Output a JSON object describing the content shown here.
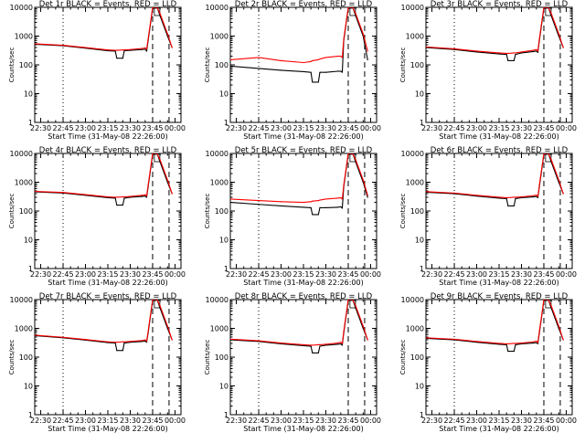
{
  "figure": {
    "background": "#ffffff",
    "series_colors": {
      "events": "#000000",
      "lld": "#ff0000"
    }
  },
  "chart_data": [
    {
      "type": "line",
      "title": "Det 1r BLACK = Events, RED = LLD",
      "xlabel": "Start Time (31-May-08 22:26:00)",
      "ylabel": "Counts/sec",
      "ylim": [
        1,
        10000
      ],
      "log_y": true,
      "x_tick_labels": [
        "22:30",
        "22:45",
        "23:00",
        "23:15",
        "23:30",
        "23:45",
        "00:00"
      ],
      "y_tick_labels": [
        "1",
        "10",
        "100",
        "1000",
        "10000"
      ],
      "x": [
        "22:26",
        "22:45",
        "23:00",
        "23:15",
        "23:20",
        "23:21",
        "23:25",
        "23:26",
        "23:30",
        "23:38",
        "23:40",
        "23:41",
        "23:42",
        "23:45",
        "23:48",
        "23:50",
        "23:55",
        "23:58"
      ],
      "series": [
        {
          "name": "Events",
          "values": [
            520,
            460,
            380,
            310,
            300,
            170,
            170,
            310,
            320,
            340,
            350,
            300,
            700,
            9000,
            10000,
            5000,
            1000,
            400
          ]
        },
        {
          "name": "LLD",
          "values": [
            540,
            480,
            400,
            330,
            320,
            320,
            330,
            330,
            340,
            370,
            390,
            350,
            800,
            10000,
            10000,
            6000,
            1200,
            400
          ]
        }
      ]
    },
    {
      "type": "line",
      "title": "Det 2r BLACK = Events, RED = LLD",
      "xlabel": "Start Time (31-May-08 22:26:00)",
      "ylabel": "Counts/sec",
      "ylim": [
        1,
        10000
      ],
      "log_y": true,
      "x_tick_labels": [
        "22:30",
        "22:45",
        "23:00",
        "23:15",
        "23:30",
        "23:45",
        "00:00"
      ],
      "y_tick_labels": [
        "1",
        "10",
        "100",
        "1000",
        "10000"
      ],
      "x": [
        "22:26",
        "22:45",
        "23:00",
        "23:15",
        "23:20",
        "23:21",
        "23:25",
        "23:26",
        "23:30",
        "23:38",
        "23:40",
        "23:41",
        "23:42",
        "23:45",
        "23:48",
        "23:50",
        "23:55",
        "23:58"
      ],
      "series": [
        {
          "name": "Events",
          "values": [
            90,
            75,
            65,
            58,
            55,
            25,
            25,
            55,
            55,
            60,
            60,
            55,
            700,
            9000,
            10000,
            5000,
            1000,
            150
          ]
        },
        {
          "name": "LLD",
          "values": [
            150,
            180,
            140,
            120,
            130,
            140,
            150,
            160,
            180,
            200,
            200,
            180,
            800,
            10000,
            10000,
            6000,
            1200,
            300
          ]
        }
      ]
    },
    {
      "type": "line",
      "title": "Det 3r BLACK = Events, RED = LLD",
      "xlabel": "Start Time (31-May-08 22:26:00)",
      "ylabel": "Counts/sec",
      "ylim": [
        1,
        10000
      ],
      "log_y": true,
      "x_tick_labels": [
        "22:30",
        "22:45",
        "23:00",
        "23:15",
        "23:30",
        "23:45",
        "00:00"
      ],
      "y_tick_labels": [
        "1",
        "10",
        "100",
        "1000",
        "10000"
      ],
      "x": [
        "22:26",
        "22:45",
        "23:00",
        "23:15",
        "23:20",
        "23:21",
        "23:25",
        "23:26",
        "23:30",
        "23:38",
        "23:40",
        "23:41",
        "23:42",
        "23:45",
        "23:48",
        "23:50",
        "23:55",
        "23:58"
      ],
      "series": [
        {
          "name": "Events",
          "values": [
            400,
            340,
            280,
            240,
            230,
            140,
            140,
            230,
            260,
            290,
            300,
            270,
            700,
            9000,
            10000,
            5000,
            1000,
            400
          ]
        },
        {
          "name": "LLD",
          "values": [
            420,
            360,
            300,
            260,
            250,
            250,
            260,
            260,
            280,
            320,
            340,
            300,
            800,
            10000,
            10000,
            6000,
            1200,
            400
          ]
        }
      ]
    },
    {
      "type": "line",
      "title": "Det 4r BLACK = Events, RED = LLD",
      "xlabel": "Start Time (31-May-08 22:26:00)",
      "ylabel": "Counts/sec",
      "ylim": [
        1,
        10000
      ],
      "log_y": true,
      "x_tick_labels": [
        "22:30",
        "22:45",
        "23:00",
        "23:15",
        "23:30",
        "23:45",
        "00:00"
      ],
      "y_tick_labels": [
        "1",
        "10",
        "100",
        "1000",
        "10000"
      ],
      "x": [
        "22:26",
        "22:45",
        "23:00",
        "23:15",
        "23:20",
        "23:21",
        "23:25",
        "23:26",
        "23:30",
        "23:38",
        "23:40",
        "23:41",
        "23:42",
        "23:45",
        "23:48",
        "23:50",
        "23:55",
        "23:58"
      ],
      "series": [
        {
          "name": "Events",
          "values": [
            460,
            420,
            350,
            290,
            280,
            160,
            160,
            280,
            300,
            320,
            330,
            300,
            700,
            9000,
            10000,
            5000,
            1000,
            400
          ]
        },
        {
          "name": "LLD",
          "values": [
            480,
            440,
            370,
            310,
            300,
            300,
            310,
            310,
            320,
            350,
            370,
            330,
            800,
            10000,
            10000,
            6000,
            1200,
            400
          ]
        }
      ]
    },
    {
      "type": "line",
      "title": "Det 5r BLACK = Events, RED = LLD",
      "xlabel": "Start Time (31-May-08 22:26:00)",
      "ylabel": "Counts/sec",
      "ylim": [
        1,
        10000
      ],
      "log_y": true,
      "x_tick_labels": [
        "22:30",
        "22:45",
        "23:00",
        "23:15",
        "23:30",
        "23:45",
        "00:00"
      ],
      "y_tick_labels": [
        "1",
        "10",
        "100",
        "1000",
        "10000"
      ],
      "x": [
        "22:26",
        "22:45",
        "23:00",
        "23:15",
        "23:20",
        "23:21",
        "23:25",
        "23:26",
        "23:30",
        "23:38",
        "23:40",
        "23:41",
        "23:42",
        "23:45",
        "23:48",
        "23:50",
        "23:55",
        "23:58"
      ],
      "series": [
        {
          "name": "Events",
          "values": [
            200,
            170,
            150,
            135,
            130,
            75,
            75,
            130,
            130,
            135,
            140,
            125,
            700,
            9000,
            10000,
            5000,
            1000,
            300
          ]
        },
        {
          "name": "LLD",
          "values": [
            260,
            230,
            210,
            200,
            210,
            220,
            230,
            240,
            260,
            280,
            290,
            260,
            800,
            10000,
            10000,
            6000,
            1200,
            350
          ]
        }
      ]
    },
    {
      "type": "line",
      "title": "Det 6r BLACK = Events, RED = LLD",
      "xlabel": "Start Time (31-May-08 22:26:00)",
      "ylabel": "Counts/sec",
      "ylim": [
        1,
        10000
      ],
      "log_y": true,
      "x_tick_labels": [
        "22:30",
        "22:45",
        "23:00",
        "23:15",
        "23:30",
        "23:45",
        "00:00"
      ],
      "y_tick_labels": [
        "1",
        "10",
        "100",
        "1000",
        "10000"
      ],
      "x": [
        "22:26",
        "22:45",
        "23:00",
        "23:15",
        "23:20",
        "23:21",
        "23:25",
        "23:26",
        "23:30",
        "23:38",
        "23:40",
        "23:41",
        "23:42",
        "23:45",
        "23:48",
        "23:50",
        "23:55",
        "23:58"
      ],
      "series": [
        {
          "name": "Events",
          "values": [
            450,
            400,
            330,
            280,
            270,
            150,
            150,
            270,
            290,
            310,
            320,
            290,
            700,
            9000,
            10000,
            5000,
            1000,
            400
          ]
        },
        {
          "name": "LLD",
          "values": [
            470,
            420,
            350,
            300,
            290,
            290,
            300,
            300,
            310,
            340,
            360,
            320,
            800,
            10000,
            10000,
            6000,
            1200,
            400
          ]
        }
      ]
    },
    {
      "type": "line",
      "title": "Det 7r BLACK = Events, RED = LLD",
      "xlabel": "Start Time (31-May-08 22:26:00)",
      "ylabel": "Counts/sec",
      "ylim": [
        1,
        10000
      ],
      "log_y": true,
      "x_tick_labels": [
        "22:30",
        "22:45",
        "23:00",
        "23:15",
        "23:30",
        "23:45",
        "00:00"
      ],
      "y_tick_labels": [
        "1",
        "10",
        "100",
        "1000",
        "10000"
      ],
      "x": [
        "22:26",
        "22:45",
        "23:00",
        "23:15",
        "23:20",
        "23:21",
        "23:25",
        "23:26",
        "23:30",
        "23:38",
        "23:40",
        "23:41",
        "23:42",
        "23:45",
        "23:48",
        "23:50",
        "23:55",
        "23:58"
      ],
      "series": [
        {
          "name": "Events",
          "values": [
            560,
            470,
            390,
            320,
            310,
            170,
            170,
            310,
            330,
            350,
            360,
            330,
            700,
            9000,
            10000,
            5000,
            1000,
            400
          ]
        },
        {
          "name": "LLD",
          "values": [
            580,
            490,
            410,
            340,
            330,
            330,
            340,
            340,
            350,
            380,
            400,
            360,
            800,
            10000,
            10000,
            6000,
            1200,
            400
          ]
        }
      ]
    },
    {
      "type": "line",
      "title": "Det 8r BLACK = Events, RED = LLD",
      "xlabel": "Start Time (31-May-08 22:26:00)",
      "ylabel": "Counts/sec",
      "ylim": [
        1,
        10000
      ],
      "log_y": true,
      "x_tick_labels": [
        "22:30",
        "22:45",
        "23:00",
        "23:15",
        "23:30",
        "23:45",
        "00:00"
      ],
      "y_tick_labels": [
        "1",
        "10",
        "100",
        "1000",
        "10000"
      ],
      "x": [
        "22:26",
        "22:45",
        "23:00",
        "23:15",
        "23:20",
        "23:21",
        "23:25",
        "23:26",
        "23:30",
        "23:38",
        "23:40",
        "23:41",
        "23:42",
        "23:45",
        "23:48",
        "23:50",
        "23:55",
        "23:58"
      ],
      "series": [
        {
          "name": "Events",
          "values": [
            400,
            350,
            290,
            250,
            240,
            140,
            140,
            240,
            260,
            280,
            290,
            260,
            700,
            9000,
            10000,
            5000,
            1000,
            400
          ]
        },
        {
          "name": "LLD",
          "values": [
            420,
            370,
            310,
            270,
            260,
            260,
            270,
            270,
            280,
            310,
            330,
            290,
            800,
            10000,
            10000,
            6000,
            1200,
            400
          ]
        }
      ]
    },
    {
      "type": "line",
      "title": "Det 9r BLACK = Events, RED = LLD",
      "xlabel": "Start Time (31-May-08 22:26:00)",
      "ylabel": "Counts/sec",
      "ylim": [
        1,
        10000
      ],
      "log_y": true,
      "x_tick_labels": [
        "22:30",
        "22:45",
        "23:00",
        "23:15",
        "23:30",
        "23:45",
        "00:00"
      ],
      "y_tick_labels": [
        "1",
        "10",
        "100",
        "1000",
        "10000"
      ],
      "x": [
        "22:26",
        "22:45",
        "23:00",
        "23:15",
        "23:20",
        "23:21",
        "23:25",
        "23:26",
        "23:30",
        "23:38",
        "23:40",
        "23:41",
        "23:42",
        "23:45",
        "23:48",
        "23:50",
        "23:55",
        "23:58"
      ],
      "series": [
        {
          "name": "Events",
          "values": [
            450,
            400,
            330,
            280,
            270,
            160,
            160,
            270,
            290,
            310,
            320,
            290,
            700,
            9000,
            10000,
            5000,
            1000,
            400
          ]
        },
        {
          "name": "LLD",
          "values": [
            470,
            420,
            350,
            300,
            290,
            290,
            300,
            300,
            310,
            340,
            360,
            320,
            800,
            10000,
            10000,
            6000,
            1200,
            400
          ]
        }
      ]
    }
  ]
}
